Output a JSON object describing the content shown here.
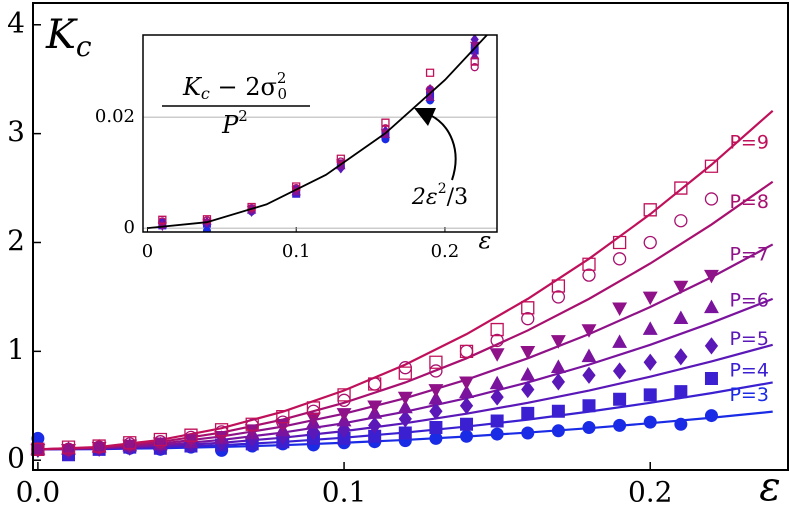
{
  "chart_data": {
    "type": "scatter",
    "title": [
      "K",
      "c"
    ],
    "xlabel": "ε",
    "xlim": [
      -0.0016,
      0.245
    ],
    "ylim": [
      -0.09,
      4.2
    ],
    "xticks": [
      {
        "value": 0,
        "label": "0.0"
      },
      0.1,
      0.2
    ],
    "yticks": [
      0,
      1,
      2,
      3,
      4
    ],
    "x": [
      0,
      0.01,
      0.02,
      0.03,
      0.04,
      0.05,
      0.06,
      0.07,
      0.08,
      0.09,
      0.1,
      0.11,
      0.12,
      0.13,
      0.14,
      0.15,
      0.16,
      0.17,
      0.18,
      0.19,
      0.2,
      0.21,
      0.22
    ],
    "fit_x": [
      0,
      0.02,
      0.04,
      0.06,
      0.08,
      0.1,
      0.12,
      0.14,
      0.16,
      0.18,
      0.2,
      0.22,
      0.24
    ],
    "series": [
      {
        "name": "P=3",
        "color": "#1a2be6",
        "marker": "circle",
        "filled": true,
        "values": [
          0.2,
          0.1,
          0.12,
          0.11,
          0.1,
          0.12,
          0.09,
          0.13,
          0.15,
          0.14,
          0.16,
          0.17,
          0.18,
          0.2,
          0.22,
          0.24,
          0.25,
          0.27,
          0.3,
          0.32,
          0.35,
          0.33,
          0.41
        ],
        "fit": [
          0.1,
          0.102,
          0.11,
          0.122,
          0.138,
          0.16,
          0.186,
          0.218,
          0.254,
          0.294,
          0.34,
          0.39,
          0.446
        ]
      },
      {
        "name": "P=4",
        "color": "#3a20d0",
        "marker": "square",
        "filled": true,
        "values": [
          0.1,
          0.05,
          0.1,
          0.12,
          0.11,
          0.13,
          0.14,
          0.15,
          0.17,
          0.2,
          0.2,
          0.22,
          0.25,
          0.3,
          0.33,
          0.36,
          0.43,
          0.45,
          0.5,
          0.56,
          0.6,
          0.63,
          0.75
        ],
        "fit": [
          0.1,
          0.104,
          0.117,
          0.138,
          0.168,
          0.207,
          0.254,
          0.309,
          0.373,
          0.446,
          0.527,
          0.616,
          0.714
        ]
      },
      {
        "name": "P=5",
        "color": "#5a18b8",
        "marker": "diamond",
        "filled": true,
        "values": [
          0.1,
          0.08,
          0.11,
          0.12,
          0.13,
          0.15,
          0.16,
          0.2,
          0.22,
          0.26,
          0.28,
          0.32,
          0.38,
          0.45,
          0.5,
          0.58,
          0.65,
          0.72,
          0.78,
          0.82,
          0.9,
          0.95,
          1.05
        ],
        "fit": [
          0.1,
          0.107,
          0.127,
          0.16,
          0.207,
          0.267,
          0.34,
          0.427,
          0.527,
          0.64,
          0.767,
          0.907,
          1.06
        ]
      },
      {
        "name": "P=6",
        "color": "#7a149e",
        "marker": "triangle-up",
        "filled": true,
        "values": [
          0.1,
          0.1,
          0.12,
          0.13,
          0.14,
          0.16,
          0.2,
          0.24,
          0.27,
          0.34,
          0.36,
          0.43,
          0.48,
          0.56,
          0.62,
          0.7,
          0.78,
          0.85,
          0.95,
          1.08,
          1.2,
          1.3,
          1.4
        ],
        "fit": [
          0.1,
          0.11,
          0.138,
          0.186,
          0.254,
          0.34,
          0.446,
          0.57,
          0.714,
          0.878,
          1.06,
          1.262,
          1.482
        ]
      },
      {
        "name": "P=7",
        "color": "#8f1288",
        "marker": "triangle-down",
        "filled": true,
        "values": [
          0.1,
          0.1,
          0.12,
          0.14,
          0.16,
          0.19,
          0.22,
          0.28,
          0.33,
          0.39,
          0.43,
          0.5,
          0.58,
          0.65,
          0.72,
          0.98,
          1.0,
          1.1,
          1.2,
          1.4,
          1.5,
          1.6,
          1.7
        ],
        "fit": [
          0.1,
          0.113,
          0.152,
          0.218,
          0.309,
          0.427,
          0.57,
          0.74,
          0.936,
          1.158,
          1.407,
          1.681,
          1.982
        ]
      },
      {
        "name": "P=8",
        "color": "#a8106f",
        "marker": "circle",
        "filled": false,
        "values": [
          0.1,
          0.1,
          0.12,
          0.15,
          0.17,
          0.21,
          0.26,
          0.32,
          0.35,
          0.45,
          0.55,
          0.7,
          0.85,
          0.82,
          1.0,
          1.1,
          1.3,
          1.5,
          1.7,
          1.85,
          2.0,
          2.2,
          2.4
        ],
        "fit": [
          0.1,
          0.117,
          0.168,
          0.254,
          0.373,
          0.527,
          0.714,
          0.936,
          1.192,
          1.482,
          1.807,
          2.165,
          2.558
        ]
      },
      {
        "name": "P=9",
        "color": "#c0105a",
        "marker": "square",
        "filled": false,
        "values": [
          0.1,
          0.12,
          0.13,
          0.16,
          0.19,
          0.23,
          0.28,
          0.33,
          0.4,
          0.48,
          0.6,
          0.7,
          0.8,
          0.9,
          1.0,
          1.2,
          1.4,
          1.6,
          1.8,
          2.0,
          2.3,
          2.5,
          2.7
        ],
        "fit": [
          0.1,
          0.122,
          0.186,
          0.294,
          0.446,
          0.64,
          0.878,
          1.158,
          1.482,
          1.85,
          2.26,
          2.714,
          3.21
        ]
      }
    ],
    "inset": {
      "ylabel_numerator": [
        "K",
        "c",
        " − 2σ",
        "2",
        "0"
      ],
      "ylabel_denominator": [
        "P",
        "2"
      ],
      "xlabel": "ε",
      "annotation": [
        "2ε",
        "2",
        "/3"
      ],
      "xlim": [
        -0.003,
        0.235
      ],
      "ylim": [
        -0.0007,
        0.0348
      ],
      "xticks": [
        {
          "value": 0,
          "label": "0"
        },
        0.1,
        0.2
      ],
      "yticks": [
        {
          "value": 0,
          "label": "0"
        },
        0.02
      ],
      "x": [
        0.01,
        0.04,
        0.07,
        0.1,
        0.13,
        0.16,
        0.19,
        0.22
      ],
      "fit_x": [
        0,
        0.04,
        0.08,
        0.12,
        0.16,
        0.2,
        0.23
      ],
      "fit": [
        0,
        0.00107,
        0.00427,
        0.0096,
        0.0171,
        0.0267,
        0.0353
      ],
      "series": [
        [
          0.001,
          -0.0005,
          0.003,
          0.007,
          0.011,
          0.016,
          0.023,
          0.033
        ],
        [
          0.0005,
          0.0008,
          0.0035,
          0.0062,
          0.0115,
          0.017,
          0.024,
          0.032
        ],
        [
          0.0008,
          0.001,
          0.003,
          0.0068,
          0.0108,
          0.0175,
          0.025,
          0.034
        ],
        [
          0.0006,
          0.0012,
          0.0032,
          0.0065,
          0.0112,
          0.0168,
          0.0235,
          0.031
        ],
        [
          0.0004,
          0.0011,
          0.0034,
          0.0069,
          0.0118,
          0.0172,
          0.0245,
          0.033
        ],
        [
          0.0012,
          0.0014,
          0.0036,
          0.0072,
          0.012,
          0.018,
          0.025,
          0.029
        ],
        [
          0.0015,
          0.0016,
          0.0038,
          0.0075,
          0.0125,
          0.019,
          0.028,
          0.03
        ]
      ]
    }
  }
}
